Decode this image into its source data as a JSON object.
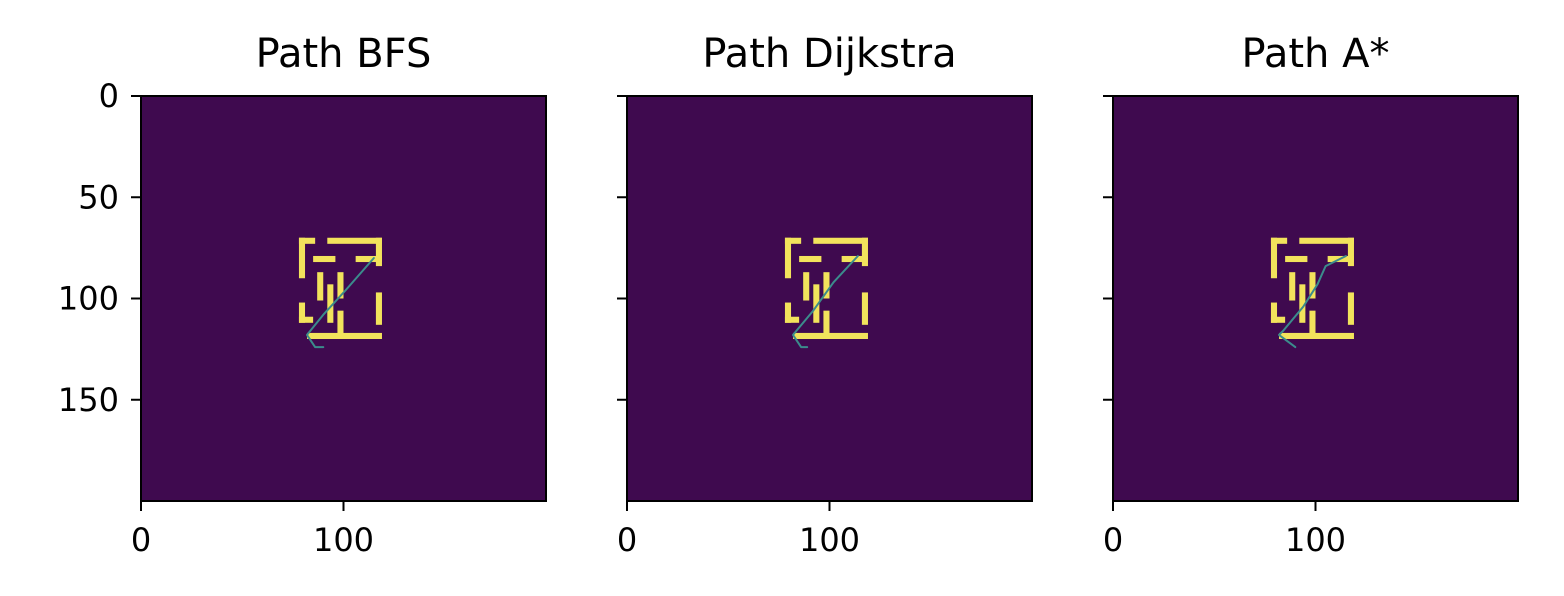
{
  "colors": {
    "background": "#3f0a4f",
    "wall": "#f2e35c",
    "path": "#3b8c8c",
    "axes": "#000000"
  },
  "chart_data": [
    {
      "type": "heatmap",
      "title": "Path BFS",
      "grid_size": [
        200,
        200
      ],
      "xlim": [
        0,
        200
      ],
      "ylim": [
        200,
        0
      ],
      "xticks": [
        0,
        100
      ],
      "yticks": [
        0,
        50,
        100,
        150
      ],
      "show_ytick_labels": true,
      "walls": [
        [
          78,
          70,
          3,
          20
        ],
        [
          78,
          70,
          8,
          3
        ],
        [
          92,
          70,
          27,
          3
        ],
        [
          116,
          70,
          3,
          14
        ],
        [
          85,
          79,
          11,
          3
        ],
        [
          106,
          79,
          13,
          3
        ],
        [
          87,
          87,
          3,
          14
        ],
        [
          97,
          87,
          3,
          13
        ],
        [
          78,
          102,
          3,
          10
        ],
        [
          78,
          109,
          7,
          3
        ],
        [
          92,
          93,
          3,
          19
        ],
        [
          116,
          97,
          3,
          16
        ],
        [
          82,
          117,
          37,
          3
        ],
        [
          97,
          106,
          3,
          14
        ]
      ],
      "path": [
        [
          115,
          80
        ],
        [
          101,
          96
        ],
        [
          90,
          108
        ],
        [
          82,
          118
        ],
        [
          86,
          124
        ],
        [
          90,
          124
        ]
      ]
    },
    {
      "type": "heatmap",
      "title": "Path Dijkstra",
      "grid_size": [
        200,
        200
      ],
      "xlim": [
        0,
        200
      ],
      "ylim": [
        200,
        0
      ],
      "xticks": [
        0,
        100
      ],
      "yticks": [
        0,
        50,
        100,
        150
      ],
      "show_ytick_labels": false,
      "walls": [
        [
          78,
          70,
          3,
          20
        ],
        [
          78,
          70,
          8,
          3
        ],
        [
          92,
          70,
          27,
          3
        ],
        [
          116,
          70,
          3,
          14
        ],
        [
          85,
          79,
          11,
          3
        ],
        [
          106,
          79,
          13,
          3
        ],
        [
          87,
          87,
          3,
          14
        ],
        [
          97,
          87,
          3,
          13
        ],
        [
          78,
          102,
          3,
          10
        ],
        [
          78,
          109,
          7,
          3
        ],
        [
          92,
          93,
          3,
          19
        ],
        [
          116,
          97,
          3,
          16
        ],
        [
          82,
          117,
          37,
          3
        ],
        [
          97,
          106,
          3,
          14
        ]
      ],
      "path": [
        [
          114,
          79
        ],
        [
          102,
          92
        ],
        [
          92,
          106
        ],
        [
          82,
          118
        ],
        [
          86,
          124
        ],
        [
          89,
          124
        ]
      ]
    },
    {
      "type": "heatmap",
      "title": "Path A*",
      "grid_size": [
        200,
        200
      ],
      "xlim": [
        0,
        200
      ],
      "ylim": [
        200,
        0
      ],
      "xticks": [
        0,
        100
      ],
      "yticks": [
        0,
        50,
        100,
        150
      ],
      "show_ytick_labels": false,
      "walls": [
        [
          78,
          70,
          3,
          20
        ],
        [
          78,
          70,
          8,
          3
        ],
        [
          92,
          70,
          27,
          3
        ],
        [
          116,
          70,
          3,
          14
        ],
        [
          85,
          79,
          11,
          3
        ],
        [
          106,
          79,
          13,
          3
        ],
        [
          87,
          87,
          3,
          14
        ],
        [
          97,
          87,
          3,
          13
        ],
        [
          78,
          102,
          3,
          10
        ],
        [
          78,
          109,
          7,
          3
        ],
        [
          92,
          93,
          3,
          19
        ],
        [
          116,
          97,
          3,
          16
        ],
        [
          82,
          117,
          37,
          3
        ],
        [
          97,
          106,
          3,
          14
        ]
      ],
      "path": [
        [
          115,
          79
        ],
        [
          105,
          84
        ],
        [
          101,
          93
        ],
        [
          94,
          104
        ],
        [
          84,
          116
        ],
        [
          82,
          118
        ],
        [
          90,
          124
        ]
      ]
    }
  ]
}
